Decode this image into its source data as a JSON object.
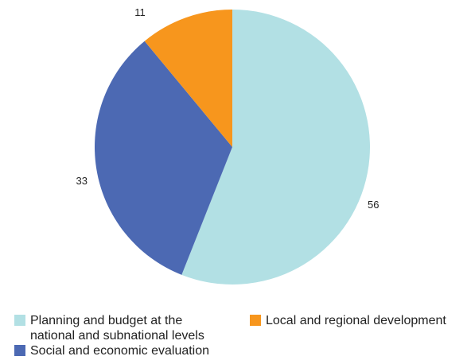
{
  "chart_data": {
    "type": "pie",
    "title": "",
    "slices": [
      {
        "label": "Planning and budget at the national and subnational levels",
        "value": 56,
        "display": "56",
        "color": "#b2e0e4"
      },
      {
        "label": "Social and economic evaluation",
        "value": 33,
        "display": "33",
        "color": "#4c69b3"
      },
      {
        "label": "Local and regional development",
        "value": 11,
        "display": "11",
        "color": "#f7961d"
      }
    ],
    "legend_placement": "bottom"
  },
  "legend": {
    "items": [
      {
        "label": "Planning and budget at the national and subnational levels",
        "color": "#b2e0e4"
      },
      {
        "label": "Local and regional development",
        "color": "#f7961d"
      },
      {
        "label": "Social and economic evaluation",
        "color": "#4c69b3"
      }
    ]
  }
}
